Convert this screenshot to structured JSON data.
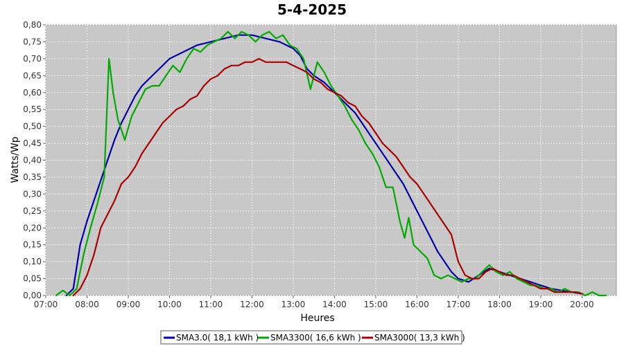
{
  "chart_data": {
    "type": "line",
    "title": "5-4-2025",
    "xlabel": "Heures",
    "ylabel": "Watts/Wp",
    "xlim": [
      "07:00",
      "20:50"
    ],
    "ylim": [
      0,
      0.8
    ],
    "x_ticks": [
      "07:00",
      "08:00",
      "09:00",
      "10:00",
      "11:00",
      "12:00",
      "13:00",
      "14:00",
      "15:00",
      "16:00",
      "17:00",
      "18:00",
      "19:00",
      "20:00"
    ],
    "y_ticks": [
      "0,00",
      "0,05",
      "0,10",
      "0,15",
      "0,20",
      "0,25",
      "0,30",
      "0,35",
      "0,40",
      "0,45",
      "0,50",
      "0,55",
      "0,60",
      "0,65",
      "0,70",
      "0,75",
      "0,80"
    ],
    "grid": true,
    "legend_position": "bottom-center",
    "background": "#c8c8c8",
    "series": [
      {
        "name": "SMA3.0",
        "legend_label": "SMA3.0( 18,1 kWh )",
        "color": "#0000aa",
        "points": [
          [
            "07:30",
            0.0
          ],
          [
            "07:40",
            0.02
          ],
          [
            "07:50",
            0.15
          ],
          [
            "08:00",
            0.22
          ],
          [
            "08:10",
            0.28
          ],
          [
            "08:20",
            0.34
          ],
          [
            "08:30",
            0.4
          ],
          [
            "08:40",
            0.46
          ],
          [
            "08:50",
            0.51
          ],
          [
            "09:00",
            0.55
          ],
          [
            "09:10",
            0.59
          ],
          [
            "09:20",
            0.62
          ],
          [
            "09:30",
            0.64
          ],
          [
            "09:40",
            0.66
          ],
          [
            "09:50",
            0.68
          ],
          [
            "10:00",
            0.7
          ],
          [
            "10:20",
            0.72
          ],
          [
            "10:40",
            0.74
          ],
          [
            "11:00",
            0.75
          ],
          [
            "11:20",
            0.76
          ],
          [
            "11:40",
            0.77
          ],
          [
            "12:00",
            0.77
          ],
          [
            "12:20",
            0.76
          ],
          [
            "12:40",
            0.75
          ],
          [
            "13:00",
            0.73
          ],
          [
            "13:10",
            0.71
          ],
          [
            "13:20",
            0.67
          ],
          [
            "13:30",
            0.65
          ],
          [
            "13:45",
            0.63
          ],
          [
            "14:00",
            0.6
          ],
          [
            "14:10",
            0.58
          ],
          [
            "14:20",
            0.56
          ],
          [
            "14:30",
            0.54
          ],
          [
            "14:40",
            0.51
          ],
          [
            "14:50",
            0.48
          ],
          [
            "15:00",
            0.45
          ],
          [
            "15:10",
            0.42
          ],
          [
            "15:20",
            0.39
          ],
          [
            "15:30",
            0.36
          ],
          [
            "15:40",
            0.33
          ],
          [
            "15:50",
            0.29
          ],
          [
            "16:00",
            0.25
          ],
          [
            "16:10",
            0.21
          ],
          [
            "16:20",
            0.17
          ],
          [
            "16:30",
            0.13
          ],
          [
            "16:40",
            0.1
          ],
          [
            "16:50",
            0.07
          ],
          [
            "17:00",
            0.05
          ],
          [
            "17:15",
            0.04
          ],
          [
            "17:30",
            0.06
          ],
          [
            "17:45",
            0.08
          ],
          [
            "18:00",
            0.07
          ],
          [
            "18:15",
            0.06
          ],
          [
            "18:30",
            0.05
          ],
          [
            "18:45",
            0.04
          ],
          [
            "19:00",
            0.03
          ],
          [
            "19:15",
            0.02
          ],
          [
            "19:30",
            0.015
          ],
          [
            "19:45",
            0.01
          ],
          [
            "20:00",
            0.005
          ]
        ]
      },
      {
        "name": "SMA3300",
        "legend_label": "SMA3300( 16,6 kWh )",
        "color": "#00aa00",
        "points": [
          [
            "07:15",
            0.0
          ],
          [
            "07:25",
            0.015
          ],
          [
            "07:35",
            0.0
          ],
          [
            "07:45",
            0.02
          ],
          [
            "07:55",
            0.12
          ],
          [
            "08:05",
            0.2
          ],
          [
            "08:15",
            0.27
          ],
          [
            "08:25",
            0.35
          ],
          [
            "08:32",
            0.7
          ],
          [
            "08:38",
            0.6
          ],
          [
            "08:45",
            0.52
          ],
          [
            "08:55",
            0.46
          ],
          [
            "09:05",
            0.53
          ],
          [
            "09:15",
            0.57
          ],
          [
            "09:25",
            0.61
          ],
          [
            "09:35",
            0.62
          ],
          [
            "09:45",
            0.62
          ],
          [
            "09:55",
            0.65
          ],
          [
            "10:05",
            0.68
          ],
          [
            "10:15",
            0.66
          ],
          [
            "10:25",
            0.7
          ],
          [
            "10:35",
            0.73
          ],
          [
            "10:45",
            0.72
          ],
          [
            "10:55",
            0.74
          ],
          [
            "11:05",
            0.75
          ],
          [
            "11:15",
            0.76
          ],
          [
            "11:25",
            0.78
          ],
          [
            "11:35",
            0.76
          ],
          [
            "11:45",
            0.78
          ],
          [
            "11:55",
            0.77
          ],
          [
            "12:05",
            0.75
          ],
          [
            "12:15",
            0.77
          ],
          [
            "12:25",
            0.78
          ],
          [
            "12:35",
            0.76
          ],
          [
            "12:45",
            0.77
          ],
          [
            "12:55",
            0.74
          ],
          [
            "13:05",
            0.73
          ],
          [
            "13:15",
            0.7
          ],
          [
            "13:25",
            0.61
          ],
          [
            "13:35",
            0.69
          ],
          [
            "13:45",
            0.66
          ],
          [
            "13:55",
            0.62
          ],
          [
            "14:05",
            0.59
          ],
          [
            "14:15",
            0.56
          ],
          [
            "14:25",
            0.52
          ],
          [
            "14:35",
            0.49
          ],
          [
            "14:45",
            0.45
          ],
          [
            "14:55",
            0.42
          ],
          [
            "15:05",
            0.38
          ],
          [
            "15:15",
            0.32
          ],
          [
            "15:25",
            0.32
          ],
          [
            "15:35",
            0.22
          ],
          [
            "15:42",
            0.17
          ],
          [
            "15:48",
            0.23
          ],
          [
            "15:55",
            0.15
          ],
          [
            "16:05",
            0.13
          ],
          [
            "16:15",
            0.11
          ],
          [
            "16:25",
            0.06
          ],
          [
            "16:35",
            0.05
          ],
          [
            "16:45",
            0.06
          ],
          [
            "16:55",
            0.05
          ],
          [
            "17:05",
            0.04
          ],
          [
            "17:15",
            0.05
          ],
          [
            "17:25",
            0.05
          ],
          [
            "17:35",
            0.07
          ],
          [
            "17:45",
            0.09
          ],
          [
            "17:55",
            0.07
          ],
          [
            "18:05",
            0.06
          ],
          [
            "18:15",
            0.07
          ],
          [
            "18:25",
            0.05
          ],
          [
            "18:35",
            0.04
          ],
          [
            "18:45",
            0.03
          ],
          [
            "18:55",
            0.03
          ],
          [
            "19:05",
            0.02
          ],
          [
            "19:15",
            0.02
          ],
          [
            "19:25",
            0.01
          ],
          [
            "19:35",
            0.02
          ],
          [
            "19:45",
            0.01
          ],
          [
            "19:55",
            0.01
          ],
          [
            "20:05",
            0.0
          ],
          [
            "20:15",
            0.01
          ],
          [
            "20:25",
            0.0
          ],
          [
            "20:35",
            0.0
          ]
        ]
      },
      {
        "name": "SMA3000",
        "legend_label": "SMA3000( 13,3 kWh )",
        "color": "#aa0000",
        "points": [
          [
            "07:40",
            0.0
          ],
          [
            "07:50",
            0.02
          ],
          [
            "08:00",
            0.06
          ],
          [
            "08:10",
            0.12
          ],
          [
            "08:20",
            0.2
          ],
          [
            "08:30",
            0.24
          ],
          [
            "08:40",
            0.28
          ],
          [
            "08:50",
            0.33
          ],
          [
            "09:00",
            0.35
          ],
          [
            "09:10",
            0.38
          ],
          [
            "09:20",
            0.42
          ],
          [
            "09:30",
            0.45
          ],
          [
            "09:40",
            0.48
          ],
          [
            "09:50",
            0.51
          ],
          [
            "10:00",
            0.53
          ],
          [
            "10:10",
            0.55
          ],
          [
            "10:20",
            0.56
          ],
          [
            "10:30",
            0.58
          ],
          [
            "10:40",
            0.59
          ],
          [
            "10:50",
            0.62
          ],
          [
            "11:00",
            0.64
          ],
          [
            "11:10",
            0.65
          ],
          [
            "11:20",
            0.67
          ],
          [
            "11:30",
            0.68
          ],
          [
            "11:40",
            0.68
          ],
          [
            "11:50",
            0.69
          ],
          [
            "12:00",
            0.69
          ],
          [
            "12:10",
            0.7
          ],
          [
            "12:20",
            0.69
          ],
          [
            "12:30",
            0.69
          ],
          [
            "12:40",
            0.69
          ],
          [
            "12:50",
            0.69
          ],
          [
            "13:00",
            0.68
          ],
          [
            "13:10",
            0.67
          ],
          [
            "13:20",
            0.66
          ],
          [
            "13:30",
            0.64
          ],
          [
            "13:40",
            0.63
          ],
          [
            "13:50",
            0.61
          ],
          [
            "14:00",
            0.6
          ],
          [
            "14:10",
            0.59
          ],
          [
            "14:20",
            0.57
          ],
          [
            "14:30",
            0.56
          ],
          [
            "14:40",
            0.53
          ],
          [
            "14:50",
            0.51
          ],
          [
            "15:00",
            0.48
          ],
          [
            "15:10",
            0.45
          ],
          [
            "15:20",
            0.43
          ],
          [
            "15:30",
            0.41
          ],
          [
            "15:40",
            0.38
          ],
          [
            "15:50",
            0.35
          ],
          [
            "16:00",
            0.33
          ],
          [
            "16:10",
            0.3
          ],
          [
            "16:20",
            0.27
          ],
          [
            "16:30",
            0.24
          ],
          [
            "16:40",
            0.21
          ],
          [
            "16:50",
            0.18
          ],
          [
            "17:00",
            0.1
          ],
          [
            "17:10",
            0.06
          ],
          [
            "17:20",
            0.05
          ],
          [
            "17:30",
            0.05
          ],
          [
            "17:40",
            0.07
          ],
          [
            "17:50",
            0.08
          ],
          [
            "18:00",
            0.07
          ],
          [
            "18:10",
            0.06
          ],
          [
            "18:20",
            0.06
          ],
          [
            "18:30",
            0.05
          ],
          [
            "18:40",
            0.04
          ],
          [
            "18:50",
            0.03
          ],
          [
            "19:00",
            0.02
          ],
          [
            "19:10",
            0.02
          ],
          [
            "19:20",
            0.01
          ],
          [
            "19:30",
            0.01
          ],
          [
            "19:40",
            0.01
          ],
          [
            "19:50",
            0.01
          ],
          [
            "20:00",
            0.005
          ]
        ]
      }
    ]
  }
}
